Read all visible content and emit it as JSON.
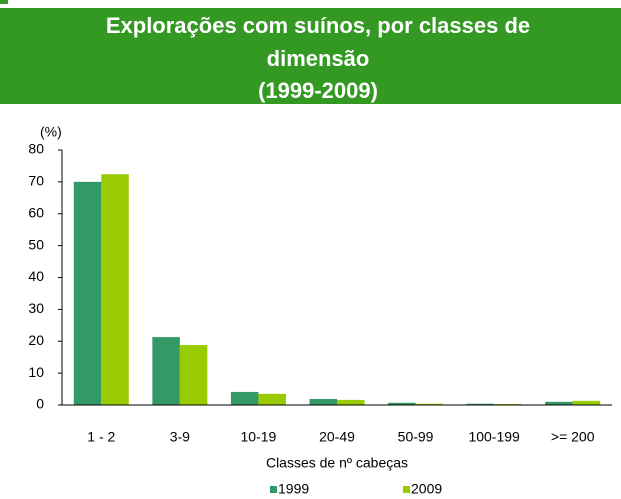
{
  "chart_data": {
    "type": "bar",
    "title": [
      "Explorações com suínos, por classes de",
      "dimensão",
      "(1999-2009)"
    ],
    "y_label": "(%)",
    "x_label": "Classes de nº cabeças",
    "categories": [
      "1 - 2",
      "3-9",
      "10-19",
      "20-49",
      "50-99",
      "100-199",
      ">= 200"
    ],
    "series": [
      {
        "name": "1999",
        "color": "#339966",
        "values": [
          70.0,
          21.3,
          4.1,
          1.9,
          0.7,
          0.4,
          1.0
        ]
      },
      {
        "name": "2009",
        "color": "#99cc00",
        "values": [
          72.4,
          18.8,
          3.5,
          1.6,
          0.4,
          0.3,
          1.3
        ]
      }
    ],
    "ylim": [
      0,
      80
    ],
    "yticks": [
      0,
      10,
      20,
      30,
      40,
      50,
      60,
      70,
      80
    ],
    "grid": false,
    "legend": "bottom",
    "banner_color": "#339922"
  }
}
